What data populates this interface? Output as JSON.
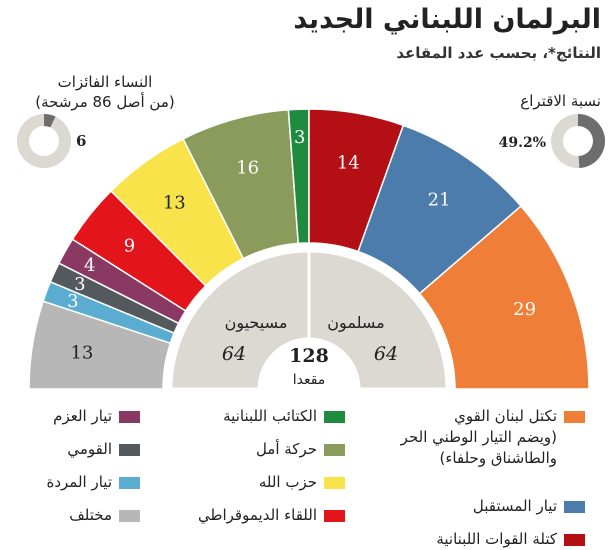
{
  "header": {
    "title": "البرلمان اللبناني الجديد",
    "subtitle": "النتائج*، بحسب عدد المقاعد"
  },
  "women": {
    "label_line1": "النساء الفائزات",
    "label_line2": "(من أصل 86 مرشحة)",
    "value": 6,
    "value_label": "6",
    "colors": {
      "fill": "#6d6d6d",
      "rest": "#dcd8d2"
    }
  },
  "turnout": {
    "label": "نسبة الاقتراع",
    "value": 49.2,
    "value_label": "49.2%",
    "colors": {
      "fill": "#6d6d6d",
      "rest": "#dcd8d2"
    }
  },
  "chart_data": {
    "type": "pie",
    "total_seats": 128,
    "series": [
      {
        "name": "مختلف",
        "value": 13,
        "color": "#b7b7b7"
      },
      {
        "name": "تيار المردة",
        "value": 3,
        "color": "#5aadd1"
      },
      {
        "name": "القومي",
        "value": 3,
        "color": "#54595e"
      },
      {
        "name": "تيار العزم",
        "value": 4,
        "color": "#8a3a62"
      },
      {
        "name": "اللقاء الديموقراطي",
        "value": 9,
        "color": "#e3151b"
      },
      {
        "name": "حزب الله",
        "value": 13,
        "color": "#f8e44a"
      },
      {
        "name": "حركة أمل",
        "value": 16,
        "color": "#8b9b5b"
      },
      {
        "name": "الكتائب اللبنانية",
        "value": 3,
        "color": "#1f8b3e"
      },
      {
        "name": "كتلة القوات اللبنانية",
        "value": 14,
        "color": "#b30f14"
      },
      {
        "name": "تيار المستقبل",
        "value": 21,
        "color": "#4b7cab"
      },
      {
        "name": "تكتل لبنان القوي (ويضم التيار الوطني الحر والطاشناق وحلفاء)",
        "value": 29,
        "color": "#ef7e38"
      }
    ],
    "inner": {
      "christians_label": "مسيحيون",
      "christians_value": "64",
      "muslims_label": "مسلمون",
      "muslims_value": "64",
      "total_value": "128",
      "total_unit": "مقعدا",
      "color": "#dcd8d2"
    }
  },
  "legend": {
    "col_right": [
      {
        "name": "تكتل لبنان القوي",
        "extra": [
          "(ويضم التيار الوطني الحر",
          "والطاشناق وحلفاء)"
        ],
        "color": "#ef7e38"
      },
      {
        "name": "تيار المستقبل",
        "color": "#4b7cab"
      },
      {
        "name": "كتلة القوات اللبنانية",
        "color": "#b30f14"
      }
    ],
    "col_mid": [
      {
        "name": "الكتائب اللبنانية",
        "color": "#1f8b3e"
      },
      {
        "name": "حركة أمل",
        "color": "#8b9b5b"
      },
      {
        "name": "حزب الله",
        "color": "#f8e44a"
      },
      {
        "name": "اللقاء الديموقراطي",
        "color": "#e3151b"
      }
    ],
    "col_left": [
      {
        "name": "تيار العزم",
        "color": "#8a3a62"
      },
      {
        "name": "القومي",
        "color": "#54595e"
      },
      {
        "name": "تيار المردة",
        "color": "#5aadd1"
      },
      {
        "name": "مختلف",
        "color": "#b7b7b7"
      }
    ]
  }
}
